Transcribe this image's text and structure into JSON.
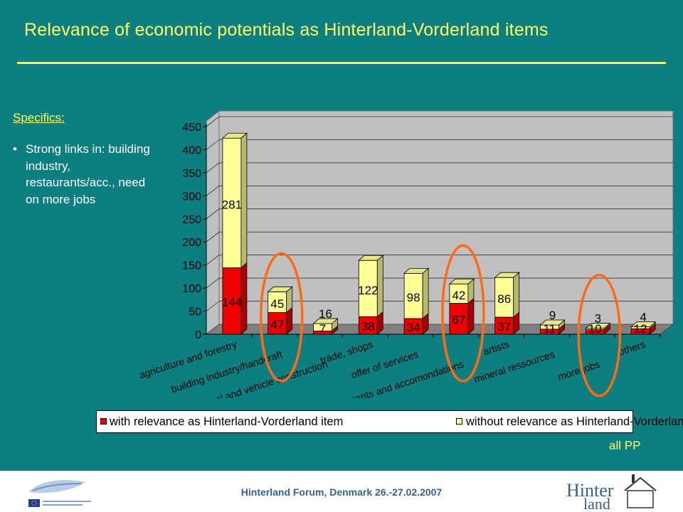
{
  "slide": {
    "title": "Relevance of economic potentials as Hinterland-Vorderland items",
    "specifics_heading": "Specifics:",
    "bullet": "Strong links in: building industry, restaurants/acc., need on more jobs",
    "all_pp": "all PP",
    "footer": "Hinterland Forum, Denmark 26.-27.02.2007",
    "logo_left_text": "Baltic Sea Region INTERREG III B · Project part-financed by the European Union (ERDF)",
    "logo_right_text": "Hinterland"
  },
  "colors": {
    "background": "#0d7f80",
    "title": "#ffff66",
    "series_with": "#ee0000",
    "series_without": "#ffff99",
    "highlight_circle": "#ff6a13",
    "plot_back": "#c0c0c0",
    "plot_floor": "#808080"
  },
  "chart_data": {
    "type": "bar",
    "stacked": true,
    "three_d": true,
    "categories": [
      "agriculture and forestry",
      "building industry/handcraft",
      "metal and vehicle construction",
      "trade, shops",
      "offer of services",
      "restaurants and accomondations",
      "artists",
      "mineral ressources",
      "more jobs",
      "others"
    ],
    "series": [
      {
        "name": "with relevance as Hinterland-Vorderland item",
        "values": [
          144,
          47,
          7,
          38,
          34,
          67,
          37,
          11,
          10,
          12
        ]
      },
      {
        "name": "without relevance as Hinterland-Vorderland item",
        "values": [
          281,
          45,
          16,
          122,
          98,
          42,
          86,
          9,
          3,
          4
        ]
      }
    ],
    "y_ticks": [
      "0",
      "50",
      "100",
      "150",
      "200",
      "250",
      "300",
      "350",
      "400",
      "450"
    ],
    "ylim": [
      0,
      450
    ],
    "grid": true,
    "legend_position": "bottom",
    "highlighted_categories": [
      "building industry/handcraft",
      "restaurants and accomondations",
      "more jobs"
    ]
  }
}
